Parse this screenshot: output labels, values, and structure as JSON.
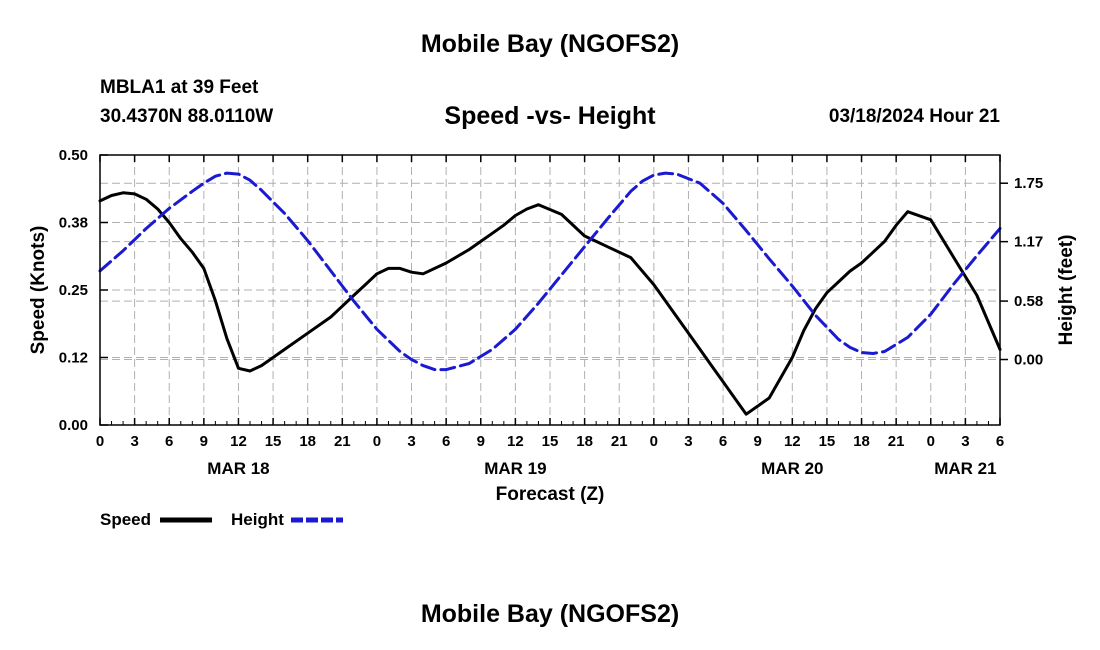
{
  "header": {
    "title": "Mobile Bay (NGOFS2)",
    "station": "MBLA1 at 39 Feet",
    "coordinates": "30.4370N  88.0110W",
    "chart_title": "Speed -vs- Height",
    "date": "03/18/2024 Hour 21"
  },
  "footer": {
    "title": "Mobile Bay (NGOFS2)"
  },
  "colors": {
    "speed": "#000000",
    "height": "#1a1ad0",
    "grid": "#b0b0b0"
  },
  "chart_data": {
    "type": "line",
    "title": "Speed -vs- Height",
    "xlabel": "Forecast (Z)",
    "ylabel": "Speed (Knots)",
    "y2label": "Height (feet)",
    "xlim": [
      0,
      78
    ],
    "ylim": [
      0,
      0.5
    ],
    "y2lim": [
      -0.65,
      2.03
    ],
    "x_ticks": [
      0,
      3,
      6,
      9,
      12,
      15,
      18,
      21,
      24,
      27,
      30,
      33,
      36,
      39,
      42,
      45,
      48,
      51,
      54,
      57,
      60,
      63,
      66,
      69,
      72,
      75,
      78
    ],
    "x_tick_labels": [
      "0",
      "3",
      "6",
      "9",
      "12",
      "15",
      "18",
      "21",
      "0",
      "3",
      "6",
      "9",
      "12",
      "15",
      "18",
      "21",
      "0",
      "3",
      "6",
      "9",
      "12",
      "15",
      "18",
      "21",
      "0",
      "3",
      "6"
    ],
    "y_ticks": [
      0.0,
      0.125,
      0.25,
      0.375,
      0.5
    ],
    "y_tick_labels": [
      "0.00",
      "0.12",
      "0.25",
      "0.38",
      "0.50"
    ],
    "y2_ticks": [
      0.0,
      0.58,
      1.17,
      1.75
    ],
    "y2_tick_labels": [
      "0.00",
      "0.58",
      "1.17",
      "1.75"
    ],
    "date_labels": [
      {
        "x": 12,
        "label": "MAR 18"
      },
      {
        "x": 36,
        "label": "MAR 19"
      },
      {
        "x": 60,
        "label": "MAR 20"
      },
      {
        "x": 75,
        "label": "MAR 21"
      }
    ],
    "grid": true,
    "legend_position": "bottom-left",
    "series": [
      {
        "name": "Speed",
        "axis": "left",
        "style": "solid",
        "x": [
          0,
          1,
          2,
          3,
          4,
          5,
          6,
          7,
          8,
          9,
          10,
          11,
          12,
          13,
          14,
          16,
          18,
          20,
          21,
          22,
          23,
          24,
          25,
          26,
          27,
          28,
          30,
          32,
          33,
          34,
          35,
          36,
          37,
          38,
          40,
          42,
          43,
          44,
          46,
          48,
          50,
          51,
          52,
          53,
          54,
          55,
          56,
          58,
          60,
          61,
          62,
          63,
          64,
          65,
          66,
          67,
          68,
          69,
          70,
          72,
          74,
          76,
          78
        ],
        "values": [
          0.415,
          0.425,
          0.43,
          0.428,
          0.418,
          0.4,
          0.375,
          0.345,
          0.32,
          0.29,
          0.23,
          0.16,
          0.105,
          0.1,
          0.11,
          0.14,
          0.17,
          0.2,
          0.22,
          0.24,
          0.26,
          0.28,
          0.29,
          0.29,
          0.283,
          0.28,
          0.3,
          0.325,
          0.34,
          0.355,
          0.37,
          0.388,
          0.4,
          0.408,
          0.39,
          0.35,
          0.34,
          0.33,
          0.31,
          0.26,
          0.2,
          0.17,
          0.14,
          0.11,
          0.08,
          0.05,
          0.02,
          0.05,
          0.125,
          0.175,
          0.215,
          0.245,
          0.265,
          0.285,
          0.3,
          0.32,
          0.34,
          0.37,
          0.395,
          0.38,
          0.31,
          0.24,
          0.14
        ]
      },
      {
        "name": "Height",
        "axis": "right",
        "style": "dashed",
        "x": [
          0,
          2,
          4,
          6,
          8,
          9,
          10,
          11,
          12,
          13,
          14,
          16,
          18,
          20,
          22,
          24,
          26,
          27,
          28,
          29,
          30,
          32,
          34,
          36,
          38,
          40,
          42,
          44,
          46,
          47,
          48,
          49,
          50,
          52,
          54,
          56,
          58,
          60,
          62,
          64,
          65,
          66,
          67,
          68,
          70,
          72,
          74,
          76,
          78
        ],
        "values": [
          0.88,
          1.08,
          1.3,
          1.5,
          1.67,
          1.75,
          1.82,
          1.85,
          1.84,
          1.78,
          1.68,
          1.45,
          1.18,
          0.88,
          0.58,
          0.3,
          0.08,
          0.0,
          -0.06,
          -0.1,
          -0.1,
          -0.04,
          0.1,
          0.3,
          0.56,
          0.84,
          1.12,
          1.4,
          1.67,
          1.77,
          1.83,
          1.85,
          1.84,
          1.75,
          1.55,
          1.28,
          1.0,
          0.73,
          0.44,
          0.2,
          0.12,
          0.07,
          0.06,
          0.08,
          0.22,
          0.45,
          0.75,
          1.03,
          1.3
        ]
      }
    ]
  },
  "legend": {
    "speed_label": "Speed",
    "height_label": "Height"
  }
}
